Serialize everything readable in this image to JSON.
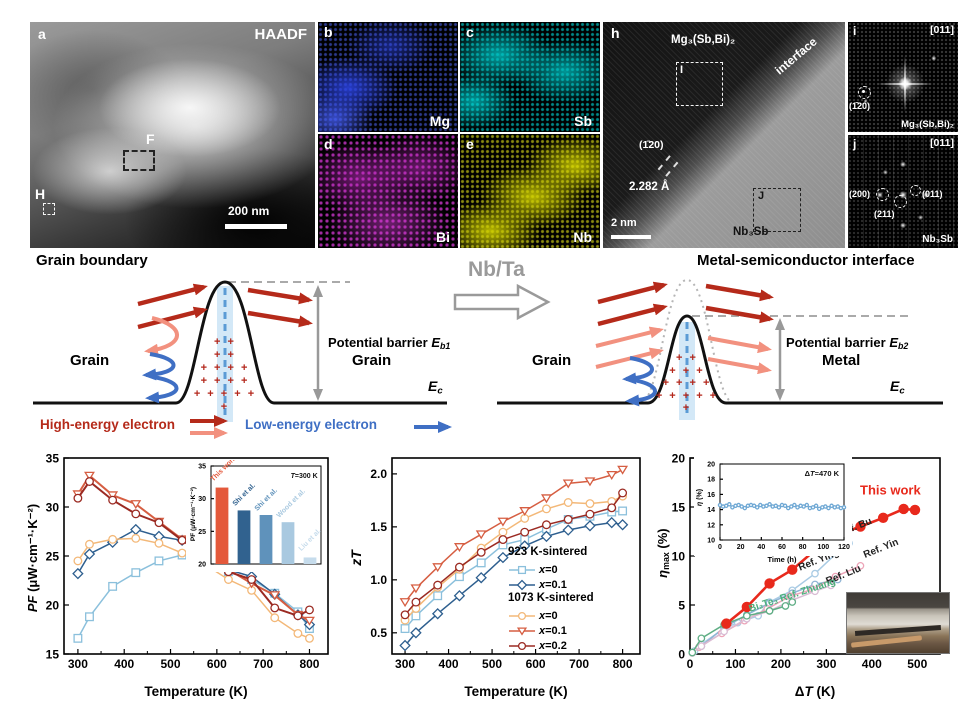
{
  "panels": {
    "a": {
      "letter": "a",
      "technique": "HAADF",
      "region_f": "F",
      "region_h": "H",
      "scalebar": "200 nm"
    },
    "b": {
      "letter": "b",
      "element": "Mg"
    },
    "c": {
      "letter": "c",
      "element": "Sb"
    },
    "d": {
      "letter": "d",
      "element": "Bi"
    },
    "e": {
      "letter": "e",
      "element": "Nb"
    },
    "h": {
      "letter": "h",
      "phase_top": "Mg₃(Sb,Bi)₂",
      "interface": "interface",
      "region_i": "I",
      "region_j": "J",
      "plane": "(1̄20)",
      "d_spacing": "2.282 Å",
      "phase_bottom": "Nb₃Sb",
      "scalebar": "2 nm"
    },
    "i": {
      "letter": "i",
      "zone_axis": "[011]",
      "spot": "(1̄20)",
      "phase": "Mg₃(Sb,Bi)₂"
    },
    "j": {
      "letter": "j",
      "zone_axis": "[011]",
      "spot_200": "(200)",
      "spot_011": "(011)",
      "spot_211": "(211)",
      "phase": "Nb₃Sb"
    }
  },
  "schematic": {
    "left_title": "Grain boundary",
    "right_title": "Metal-semiconductor interface",
    "transform_label": "Nb/Ta",
    "barrier_left": {
      "label": "Potential barrier ",
      "symbol": "E",
      "sub": "b1"
    },
    "barrier_right": {
      "label": "Potential barrier ",
      "symbol": "E",
      "sub": "b2"
    },
    "grain_left": "Grain",
    "grain_right": "Grain",
    "grain_right2": "Grain",
    "metal": "Metal",
    "ec_symbol": "E",
    "ec_sub": "c",
    "legend_high": "High-energy electron",
    "legend_low": "Low-energy electron",
    "plus_rows": [
      "+ +",
      "+ +",
      "+ + + +",
      "+ + + +",
      "+ + + + + +"
    ],
    "plus_rows_right": [
      "+ +",
      "+ + +",
      "+ + + +",
      "+ + + + + +"
    ]
  },
  "colors": {
    "high_energy": "#b52a1a",
    "low_energy": "#3f6fc4",
    "pink": "#f2917f",
    "barrier_gray": "#9a9a9a",
    "band_blue": "#aed6f1",
    "this_work_red": "#e8291c",
    "zhuang_green": "#4daf7c"
  },
  "chart_data": {
    "pf": {
      "type": "line",
      "xlabel": "Temperature (K)",
      "ylabel_main": "PF",
      "ylabel_units": " (μW·cm⁻¹·K⁻²)",
      "xlim": [
        270,
        840
      ],
      "ylim": [
        15,
        35
      ],
      "xticks": [
        300,
        400,
        500,
        600,
        700,
        800
      ],
      "xminor": [
        350,
        450,
        550,
        650,
        750
      ],
      "yticks": [
        15,
        20,
        25,
        30,
        35
      ],
      "series": [
        {
          "name": "923 K-sintered x=0",
          "marker": "sq",
          "color": "#8bc0dc",
          "x": [
            300,
            325,
            375,
            425,
            475,
            525,
            575,
            625,
            675,
            725,
            775,
            800
          ],
          "y": [
            16.6,
            18.8,
            21.9,
            23.3,
            24.5,
            25.1,
            24.6,
            23.4,
            22.6,
            21.2,
            19.3,
            17.6
          ]
        },
        {
          "name": "923 K-sintered x=0.1",
          "marker": "di",
          "color": "#2e5f8f",
          "x": [
            300,
            325,
            375,
            425,
            475,
            525,
            575,
            625,
            675,
            725,
            775,
            800
          ],
          "y": [
            23.2,
            25.2,
            26.4,
            27.7,
            27.0,
            26.6,
            25.0,
            23.6,
            22.9,
            21.1,
            19.0,
            18.0
          ]
        },
        {
          "name": "1073 K-sintered x=0",
          "marker": "ci",
          "color": "#f3b878",
          "x": [
            300,
            325,
            375,
            425,
            475,
            525,
            575,
            625,
            675,
            725,
            775,
            800
          ],
          "y": [
            24.5,
            26.2,
            26.7,
            26.8,
            26.3,
            25.3,
            24.1,
            22.6,
            21.5,
            18.7,
            17.1,
            16.6
          ]
        },
        {
          "name": "1073 K-sintered x=0.1",
          "marker": "td",
          "color": "#d65e42",
          "lw": 2,
          "x": [
            300,
            325,
            375,
            425,
            475,
            525,
            575,
            625,
            675,
            725,
            775,
            800
          ],
          "y": [
            31.3,
            33.2,
            31.2,
            30.3,
            28.5,
            26.7,
            25.1,
            23.6,
            22.2,
            21.0,
            19.0,
            18.4
          ]
        },
        {
          "name": "1073 K-sintered x=0.2",
          "marker": "ci",
          "color": "#9b2a22",
          "lw": 2,
          "x": [
            300,
            325,
            375,
            425,
            475,
            525,
            575,
            625,
            675,
            725,
            775,
            800
          ],
          "y": [
            30.9,
            32.6,
            30.7,
            29.3,
            28.4,
            26.6,
            25.0,
            23.4,
            22.6,
            19.7,
            18.9,
            19.5
          ]
        }
      ]
    },
    "pf_inset": {
      "type": "bar",
      "ylabel": "PF (μW·cm⁻¹·K⁻²)",
      "ylim": [
        20,
        35
      ],
      "yticks": [
        20,
        25,
        30,
        35
      ],
      "categories": [
        "This work",
        "Shi et al.",
        "Shi et al.",
        "Wood et al.",
        "Liu et al."
      ],
      "values": [
        31.7,
        28.2,
        27.5,
        26.4,
        21.0
      ],
      "colors": [
        "#e4593b",
        "#31628f",
        "#5f92bb",
        "#a9c9e0",
        "#c6dcec"
      ],
      "annotations": [
        {
          "parts": [
            {
              "t": "This work"
            }
          ],
          "color": "#e4593b",
          "fx": 0.02,
          "fy": 0.16,
          "rot": -45
        },
        {
          "parts": [
            {
              "t": "Shi et al."
            }
          ],
          "color": "#31628f",
          "fx": 0.22,
          "fy": 0.41,
          "rot": -45
        },
        {
          "parts": [
            {
              "t": "Shi et al."
            }
          ],
          "color": "#5f92bb",
          "fx": 0.42,
          "fy": 0.46,
          "rot": -45
        },
        {
          "parts": [
            {
              "t": "Wood et al."
            }
          ],
          "color": "#a9c9e0",
          "fx": 0.62,
          "fy": 0.53,
          "rot": -45
        },
        {
          "parts": [
            {
              "t": "Liu et al."
            }
          ],
          "color": "#c6dcec",
          "fx": 0.82,
          "fy": 0.87,
          "rot": -45
        },
        {
          "parts": [
            {
              "t": "T",
              "i": 1
            },
            {
              "t": "=300 K"
            }
          ],
          "color": "#111",
          "fx": 0.97,
          "fy": 0.12,
          "anchor": "end",
          "bold": 1
        }
      ]
    },
    "zt": {
      "type": "line",
      "xlabel": "Temperature (K)",
      "ylabel": "zT",
      "xlim": [
        270,
        840
      ],
      "ylim": [
        0.3,
        2.15
      ],
      "xticks": [
        300,
        400,
        500,
        600,
        700,
        800
      ],
      "xminor": [
        350,
        450,
        550,
        650,
        750
      ],
      "yticks": [
        0.5,
        1.0,
        1.5,
        2.0
      ],
      "ytick_labels": [
        "0.5",
        "1.0",
        "1.5",
        "2.0"
      ],
      "series": [
        {
          "name": "923 K-sintered x=0",
          "marker": "sq",
          "color": "#8bc0dc",
          "x": [
            300,
            325,
            375,
            425,
            475,
            525,
            575,
            625,
            675,
            725,
            775,
            800
          ],
          "y": [
            0.54,
            0.66,
            0.85,
            1.03,
            1.16,
            1.33,
            1.38,
            1.48,
            1.57,
            1.6,
            1.64,
            1.65
          ]
        },
        {
          "name": "923 K-sintered x=0.1",
          "marker": "di",
          "color": "#2e5f8f",
          "x": [
            300,
            325,
            375,
            425,
            475,
            525,
            575,
            625,
            675,
            725,
            775,
            800
          ],
          "y": [
            0.38,
            0.5,
            0.68,
            0.85,
            1.02,
            1.21,
            1.32,
            1.41,
            1.47,
            1.51,
            1.54,
            1.52
          ]
        },
        {
          "name": "1073 K-sintered x=0",
          "marker": "ci",
          "color": "#f3b878",
          "x": [
            300,
            325,
            375,
            425,
            475,
            525,
            575,
            625,
            675,
            725,
            775,
            800
          ],
          "y": [
            0.62,
            0.73,
            0.93,
            1.1,
            1.3,
            1.45,
            1.58,
            1.67,
            1.73,
            1.72,
            1.74,
            1.79
          ]
        },
        {
          "name": "1073 K-sintered x=0.1",
          "marker": "td",
          "color": "#d65e42",
          "x": [
            300,
            325,
            375,
            425,
            475,
            525,
            575,
            625,
            675,
            725,
            775,
            800
          ],
          "y": [
            0.79,
            0.92,
            1.12,
            1.31,
            1.43,
            1.55,
            1.65,
            1.77,
            1.91,
            1.93,
            1.99,
            2.04
          ]
        },
        {
          "name": "1073 K-sintered x=0.2",
          "marker": "ci",
          "color": "#9b2a22",
          "x": [
            300,
            325,
            375,
            425,
            475,
            525,
            575,
            625,
            675,
            725,
            775,
            800
          ],
          "y": [
            0.67,
            0.79,
            0.95,
            1.12,
            1.26,
            1.38,
            1.45,
            1.52,
            1.57,
            1.62,
            1.68,
            1.82
          ]
        }
      ],
      "legend": [
        {
          "type": "header",
          "text": "923 K-sintered"
        },
        {
          "type": "item",
          "marker": "sq",
          "color": "#8bc0dc",
          "text": "x=0"
        },
        {
          "type": "item",
          "marker": "di",
          "color": "#2e5f8f",
          "text": "x=0.1"
        },
        {
          "type": "header",
          "text": "1073 K-sintered"
        },
        {
          "type": "item",
          "marker": "ci",
          "color": "#f3b878",
          "text": "x=0"
        },
        {
          "type": "item",
          "marker": "td",
          "color": "#d65e42",
          "text": "x=0.1"
        },
        {
          "type": "item",
          "marker": "ci",
          "color": "#9b2a22",
          "text": "x=0.2"
        }
      ]
    },
    "eff": {
      "type": "line",
      "xlabel_d": "Δ",
      "xlabel_t": "T",
      "xlabel_units": " (K)",
      "ylabel_sym": "η",
      "ylabel_sub": "max",
      "ylabel_units": " (%)",
      "xlim": [
        0,
        550
      ],
      "ylim": [
        0,
        20
      ],
      "xticks": [
        0,
        100,
        200,
        300,
        400,
        500
      ],
      "xminor": [
        50,
        150,
        250,
        350,
        450
      ],
      "yticks": [
        0,
        5,
        10,
        15,
        20
      ],
      "series": [
        {
          "name": "Ref. Bu",
          "marker": "ci",
          "color": "#a9cbe4",
          "ms": 3.2,
          "x": [
            10,
            25,
            75,
            105,
            150,
            175,
            225,
            275,
            325,
            350
          ],
          "y": [
            0.3,
            1.0,
            2.6,
            3.2,
            3.9,
            5.3,
            6.5,
            8.2,
            10.4,
            11.3
          ]
        },
        {
          "name": "Ref. Ying",
          "marker": "ci",
          "color": "#8fb4d4",
          "ms": 3.2,
          "x": [
            25,
            75,
            125,
            175,
            225,
            275,
            325
          ],
          "y": [
            0.8,
            2.7,
            4.0,
            5.2,
            6.2,
            7.1,
            7.6
          ]
        },
        {
          "name": "Ref. Yin",
          "marker": "ci",
          "color": "#eda4b8",
          "ms": 3.2,
          "x": [
            20,
            70,
            120,
            170,
            220,
            270,
            320,
            375
          ],
          "y": [
            0.7,
            2.1,
            3.4,
            4.6,
            5.9,
            6.6,
            7.9,
            9.0
          ]
        },
        {
          "name": "Ref. Liu",
          "marker": "ci",
          "color": "#d9bcd4",
          "ms": 3.2,
          "x": [
            5,
            25,
            75,
            125,
            175,
            225,
            275,
            310
          ],
          "y": [
            0.1,
            0.8,
            2.3,
            3.6,
            4.4,
            5.5,
            6.4,
            7.0
          ]
        },
        {
          "name": "Bi₂Te₃ Ref. Zhuang",
          "marker": "ci",
          "color": "#5fae85",
          "ms": 3.2,
          "x": [
            5,
            25,
            75,
            125,
            175,
            210,
            225
          ],
          "y": [
            0.15,
            1.6,
            3.0,
            3.9,
            4.4,
            4.9,
            5.3
          ]
        },
        {
          "name": "This work",
          "marker": "fc",
          "color": "#e8291c",
          "lw": 2.6,
          "ms": 5.2,
          "x": [
            80,
            125,
            175,
            225,
            275,
            325,
            375,
            425,
            470,
            495
          ],
          "y": [
            3.1,
            4.8,
            7.2,
            8.6,
            10.6,
            12.2,
            13.0,
            13.9,
            14.8,
            14.7
          ]
        }
      ],
      "annotations": [
        {
          "parts": [
            {
              "t": "This work"
            }
          ],
          "color": "#e8291c",
          "fx": 0.68,
          "fy": 0.185,
          "bold": 1,
          "size": 13
        },
        {
          "parts": [
            {
              "t": "Ref. Bu"
            }
          ],
          "color": "#222",
          "fx": 0.6,
          "fy": 0.4,
          "rot": -22
        },
        {
          "parts": [
            {
              "t": "Ref. Yin"
            }
          ],
          "color": "#222",
          "fx": 0.7,
          "fy": 0.51,
          "rot": -22
        },
        {
          "parts": [
            {
              "t": "Ref. Ying"
            }
          ],
          "color": "#222",
          "fx": 0.44,
          "fy": 0.575,
          "rot": -22
        },
        {
          "parts": [
            {
              "t": "Ref. Liu"
            }
          ],
          "color": "#222",
          "fx": 0.55,
          "fy": 0.645,
          "rot": -22
        },
        {
          "parts": [
            {
              "t": "Bi₂Te₃ Ref. Zhuang"
            }
          ],
          "color": "#4daf7c",
          "fx": 0.24,
          "fy": 0.785,
          "rot": -18
        }
      ]
    },
    "eff_inset": {
      "type": "line",
      "xlabel": "Time (h)",
      "ylabel_sym": "η",
      "ylabel_units": " (%)",
      "xlim": [
        0,
        120
      ],
      "ylim": [
        10,
        20
      ],
      "xticks": [
        0,
        20,
        40,
        60,
        80,
        100,
        120
      ],
      "yticks": [
        10,
        12,
        14,
        16,
        18,
        20
      ],
      "series": [
        {
          "name": "efficiency stability",
          "marker": "ci",
          "color": "#6fa8d4",
          "ms": 1.6,
          "lw": 0.8,
          "x0": 0,
          "dx": 3,
          "y": [
            14.6,
            14.4,
            14.5,
            14.7,
            14.3,
            14.5,
            14.6,
            14.4,
            14.2,
            14.5,
            14.6,
            14.5,
            14.3,
            14.6,
            14.4,
            14.5,
            14.7,
            14.4,
            14.5,
            14.3,
            14.6,
            14.5,
            14.2,
            14.4,
            14.6,
            14.3,
            14.5,
            14.4,
            14.6,
            14.2,
            14.3,
            14.5,
            14.1,
            14.3,
            14.4,
            14.2,
            14.5,
            14.3,
            14.4,
            14.2,
            14.3
          ]
        }
      ],
      "annotations": [
        {
          "parts": [
            {
              "t": "Δ"
            },
            {
              "t": "T",
              "i": 1
            },
            {
              "t": "=470 K"
            }
          ],
          "color": "#111",
          "fx": 0.96,
          "fy": 0.16,
          "anchor": "end",
          "bold": 1
        }
      ]
    }
  }
}
